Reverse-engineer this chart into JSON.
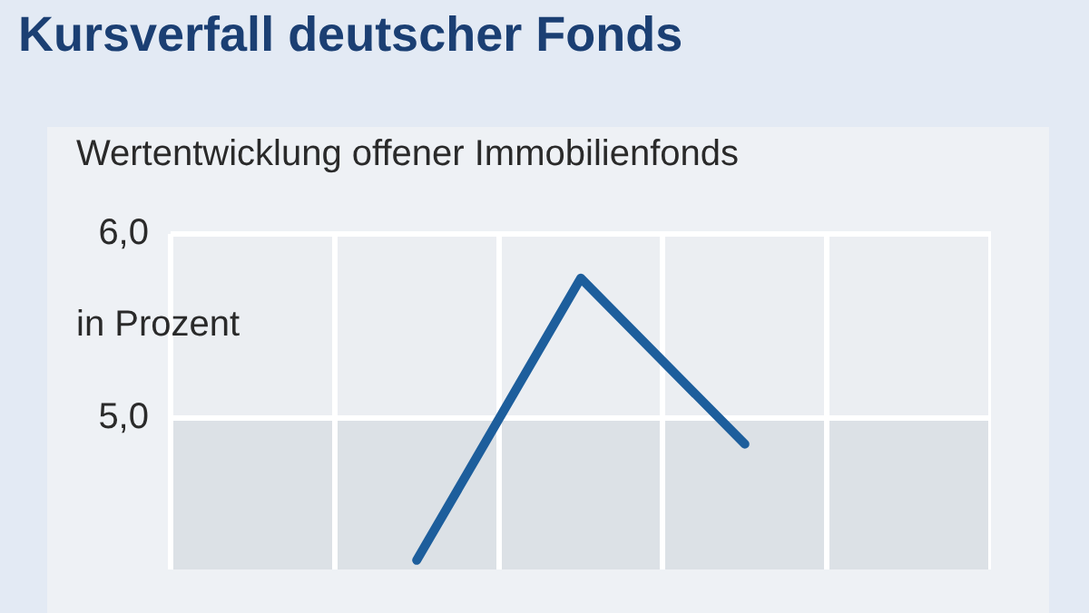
{
  "chart_data": {
    "type": "line",
    "title": "Kursverfall deutscher Fonds",
    "subtitle": "Wertentwicklung offener Immobilienfonds",
    "ylabel": "in Prozent",
    "categories": [
      null,
      null,
      null,
      null,
      null
    ],
    "series": [
      {
        "color": "#1d5e9c",
        "values": [
          null,
          4.23,
          5.76,
          4.86,
          null
        ]
      }
    ],
    "ylim": [
      4.18,
      6.0
    ],
    "yticks": [
      {
        "value": 6,
        "label": "6,0"
      },
      {
        "value": 5,
        "label": "5,0"
      }
    ],
    "bands": [
      {
        "axis": "y",
        "from": 4.18,
        "to": 5.0,
        "color": "#dce1e6"
      }
    ],
    "grid": true,
    "marker": "none",
    "line_style": "solid",
    "legend": false
  }
}
